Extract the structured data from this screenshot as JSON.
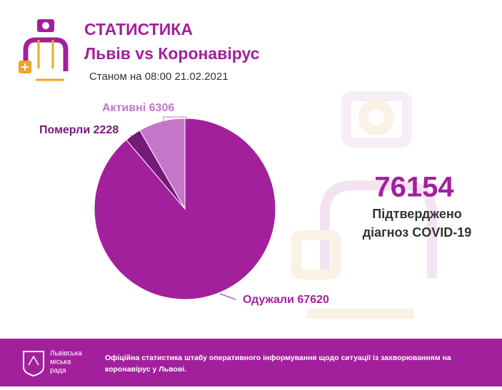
{
  "chart_data": {
    "type": "pie",
    "title": "СТАТИСТИКА",
    "subtitle": "Львів vs Коронавірус",
    "date": "Станом на 08:00 21.02.2021",
    "categories": [
      "Одужали",
      "Померли",
      "Активні"
    ],
    "values": [
      67620,
      2228,
      6306
    ],
    "colors": [
      "#a3209d",
      "#76197a",
      "#c476c8"
    ]
  },
  "summary": {
    "number": "76154",
    "lines": [
      "Підтверджено",
      "діагноз COVID-19"
    ]
  },
  "footer": {
    "logo_lines": [
      "Львівська",
      "міська",
      "рада"
    ],
    "text_lines": [
      "Офіційна статистика штабу оперативного інформування щодо ситуації із захворюванням на",
      "коронавірус у Львові."
    ]
  }
}
